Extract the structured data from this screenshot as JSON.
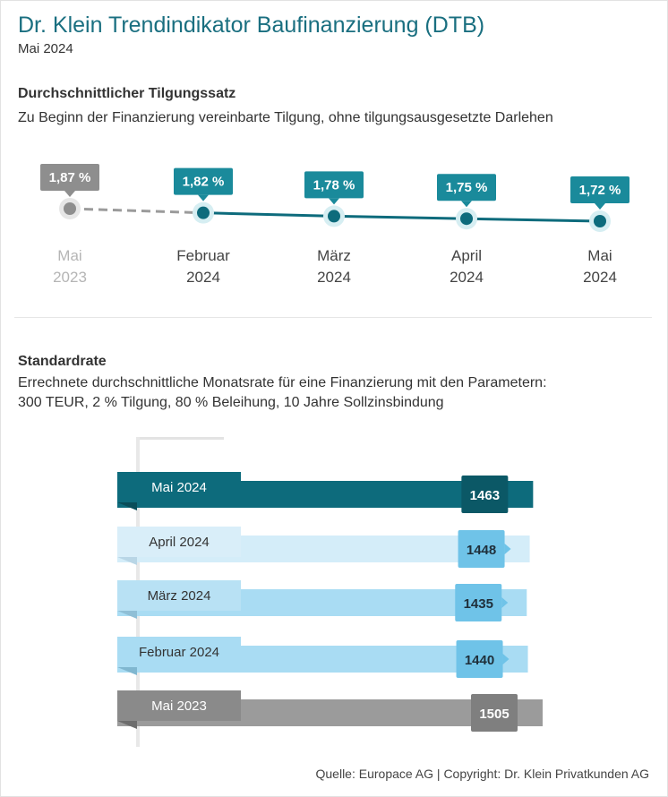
{
  "header": {
    "title": "Dr. Klein Trendindikator Baufinanzierung (DTB)",
    "subtitle": "Mai 2024"
  },
  "section1": {
    "heading": "Durchschnittlicher Tilgungssatz",
    "description": "Zu Beginn der Finanzierung vereinbarte Tilgung, ohne tilgungsausgesetzte Darlehen"
  },
  "section2": {
    "heading": "Standardrate",
    "description_line1": "Errechnete durchschnittliche Monatsrate für eine Finanzierung mit den Parametern:",
    "description_line2": "300 TEUR, 2 % Tilgung, 80 % Beleihung, 10 Jahre Sollzinsbindung"
  },
  "footer": {
    "source": "Quelle: Europace AG | Copyright: Dr. Klein Privatkunden AG"
  },
  "colors": {
    "teal_dark": "#0d6b7c",
    "teal": "#1a8a9b",
    "light_blue": "#6fc3e8",
    "lighter_blue": "#a9dcf3",
    "pale_blue": "#d4edf9",
    "gray": "#9b9b9b",
    "gray_dark": "#8a8a8a"
  },
  "chart_data": [
    {
      "type": "line",
      "title": "Durchschnittlicher Tilgungssatz",
      "categories": [
        {
          "month": "Mai",
          "year": "2023"
        },
        {
          "month": "Februar",
          "year": "2024"
        },
        {
          "month": "März",
          "year": "2024"
        },
        {
          "month": "April",
          "year": "2024"
        },
        {
          "month": "Mai",
          "year": "2024"
        }
      ],
      "values": [
        1.87,
        1.82,
        1.78,
        1.75,
        1.72
      ],
      "labels": [
        "1,87 %",
        "1,82 %",
        "1,78 %",
        "1,75 %",
        "1,72 %"
      ],
      "unit": "%"
    },
    {
      "type": "bar",
      "orientation": "horizontal",
      "title": "Standardrate",
      "categories": [
        "Mai 2024",
        "April 2024",
        "März 2024",
        "Februar 2024",
        "Mai 2023"
      ],
      "values": [
        1463,
        1448,
        1435,
        1440,
        1505
      ],
      "labels": [
        "1463",
        "1448",
        "1435",
        "1440",
        "1505"
      ]
    }
  ]
}
